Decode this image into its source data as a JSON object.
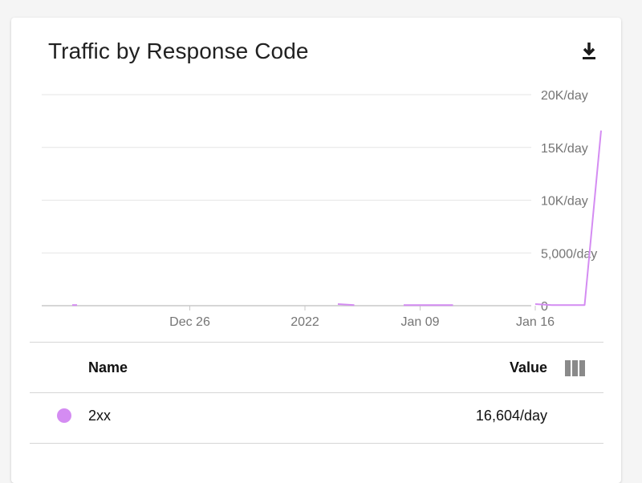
{
  "card": {
    "title": "Traffic by Response Code",
    "download_icon": "download-icon",
    "columns_icon": "column-selector-icon"
  },
  "colors": {
    "series_2xx": "#d48cf2",
    "grid": "#e6e6e6",
    "axis": "#c8c8c8",
    "tick_text": "#757575"
  },
  "chart_data": {
    "type": "line",
    "title": "Traffic by Response Code",
    "xlabel": "",
    "ylabel": "",
    "x_ticks": [
      "Dec 26",
      "2022",
      "Jan 09",
      "Jan 16"
    ],
    "y_ticks": [
      "0",
      "5,000/day",
      "10K/day",
      "15K/day",
      "20K/day"
    ],
    "ylim": [
      0,
      20000
    ],
    "y_axis_side": "right",
    "grid": true,
    "series": [
      {
        "name": "2xx",
        "segments": [
          {
            "x": [
              "2021-12-19",
              "2021-12-19"
            ],
            "y": [
              60,
              60
            ]
          },
          {
            "x": [
              "2022-01-04",
              "2022-01-05"
            ],
            "y": [
              150,
              60
            ]
          },
          {
            "x": [
              "2022-01-08",
              "2022-01-09",
              "2022-01-10",
              "2022-01-11"
            ],
            "y": [
              60,
              60,
              60,
              60
            ]
          },
          {
            "x": [
              "2022-01-16",
              "2022-01-17",
              "2022-01-18",
              "2022-01-19",
              "2022-01-20"
            ],
            "y": [
              150,
              60,
              60,
              60,
              16604
            ]
          }
        ]
      }
    ]
  },
  "table": {
    "header_name": "Name",
    "header_value": "Value",
    "rows": [
      {
        "name": "2xx",
        "value": "16,604/day"
      }
    ]
  }
}
